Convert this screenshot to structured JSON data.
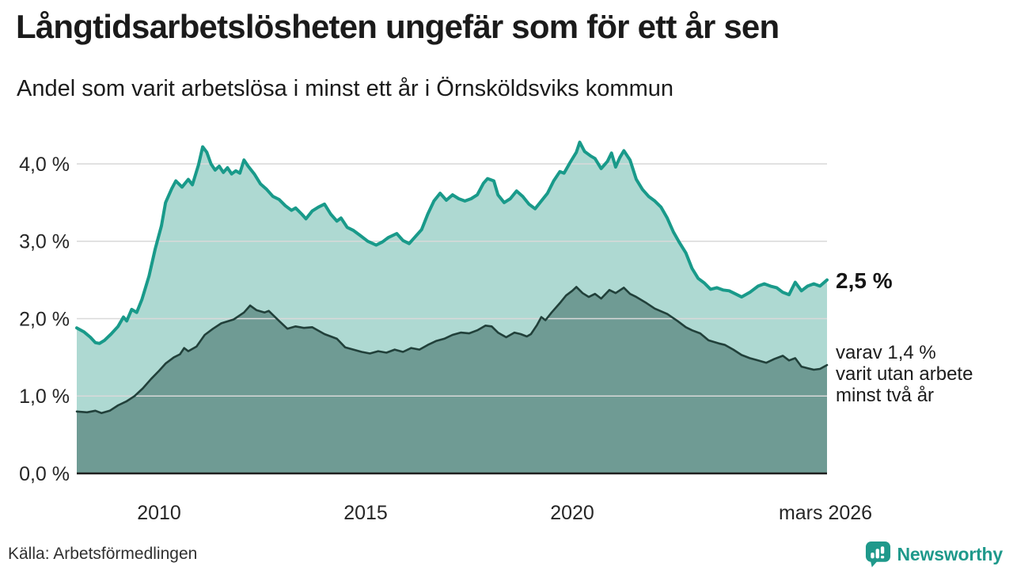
{
  "title": "Långtidsarbetslösheten ungefär som för ett år sen",
  "subtitle": "Andel som varit arbetslösa i minst ett år i Örnsköldsviks kommun",
  "source": "Källa: Arbetsförmedlingen",
  "branding": {
    "name": "Newsworthy",
    "color": "#1f998b"
  },
  "annotations": {
    "latest_total": "2,5 %",
    "secondary_line1": "varav 1,4 %",
    "secondary_line2": "varit utan arbete",
    "secondary_line3": "minst två år"
  },
  "chart_data": {
    "type": "area",
    "title": "Långtidsarbetslösheten ungefär som för ett år sen",
    "subtitle": "Andel som varit arbetslösa i minst ett år i Örnsköldsviks kommun",
    "x_unit": "decimal_year",
    "xlim": [
      2008.0,
      2026.17
    ],
    "ylim": [
      0,
      4.5
    ],
    "grid": "horizontal",
    "colors": {
      "gridline": "#d9d9d9",
      "axis_line": "#1f1f1f",
      "background": "#ffffff"
    },
    "yticks": [
      {
        "value": 4.0,
        "label": "4,0 %"
      },
      {
        "value": 3.0,
        "label": "3,0 %"
      },
      {
        "value": 2.0,
        "label": "2,0 %"
      },
      {
        "value": 1.0,
        "label": "1,0 %"
      },
      {
        "value": 0.0,
        "label": "0,0 %"
      }
    ],
    "xticks": [
      {
        "value": 2010,
        "label": "2010"
      },
      {
        "value": 2015,
        "label": "2015"
      },
      {
        "value": 2020,
        "label": "2020"
      },
      {
        "value": 2026.17,
        "label": "mars 2026"
      }
    ],
    "latest": {
      "at_least_one_year_pct": 2.5,
      "at_least_two_years_pct": 1.4
    },
    "series": [
      {
        "name": "Andel arbetslösa minst ett år",
        "color": "#199a8a",
        "fill": "#aed9d2",
        "line_width": 4,
        "x": [
          2008.0,
          2008.17,
          2008.33,
          2008.45,
          2008.55,
          2008.67,
          2008.83,
          2009.0,
          2009.13,
          2009.21,
          2009.33,
          2009.45,
          2009.58,
          2009.75,
          2009.9,
          2010.05,
          2010.15,
          2010.3,
          2010.4,
          2010.55,
          2010.7,
          2010.8,
          2010.95,
          2011.05,
          2011.15,
          2011.25,
          2011.35,
          2011.45,
          2011.55,
          2011.65,
          2011.75,
          2011.85,
          2011.95,
          2012.05,
          2012.15,
          2012.3,
          2012.45,
          2012.6,
          2012.75,
          2012.9,
          2013.05,
          2013.2,
          2013.3,
          2013.45,
          2013.55,
          2013.7,
          2013.85,
          2014.0,
          2014.15,
          2014.3,
          2014.4,
          2014.55,
          2014.7,
          2014.85,
          2015.05,
          2015.25,
          2015.4,
          2015.55,
          2015.75,
          2015.9,
          2016.05,
          2016.2,
          2016.35,
          2016.5,
          2016.65,
          2016.8,
          2016.95,
          2017.1,
          2017.25,
          2017.4,
          2017.55,
          2017.7,
          2017.85,
          2017.95,
          2018.1,
          2018.2,
          2018.35,
          2018.5,
          2018.65,
          2018.8,
          2018.95,
          2019.1,
          2019.25,
          2019.4,
          2019.55,
          2019.7,
          2019.8,
          2019.95,
          2020.1,
          2020.18,
          2020.3,
          2020.45,
          2020.55,
          2020.7,
          2020.85,
          2020.95,
          2021.05,
          2021.15,
          2021.25,
          2021.4,
          2021.55,
          2021.7,
          2021.85,
          2022.0,
          2022.15,
          2022.3,
          2022.45,
          2022.6,
          2022.75,
          2022.9,
          2023.05,
          2023.2,
          2023.35,
          2023.5,
          2023.65,
          2023.8,
          2023.95,
          2024.1,
          2024.3,
          2024.5,
          2024.65,
          2024.8,
          2024.95,
          2025.1,
          2025.25,
          2025.4,
          2025.55,
          2025.7,
          2025.85,
          2026.0,
          2026.17
        ],
        "values": [
          1.88,
          1.83,
          1.76,
          1.69,
          1.68,
          1.72,
          1.8,
          1.9,
          2.02,
          1.97,
          2.12,
          2.08,
          2.25,
          2.55,
          2.9,
          3.2,
          3.5,
          3.68,
          3.78,
          3.7,
          3.8,
          3.73,
          3.99,
          4.22,
          4.15,
          4.0,
          3.92,
          3.97,
          3.89,
          3.95,
          3.87,
          3.91,
          3.88,
          4.05,
          3.97,
          3.87,
          3.74,
          3.67,
          3.58,
          3.54,
          3.46,
          3.4,
          3.43,
          3.35,
          3.29,
          3.39,
          3.44,
          3.48,
          3.35,
          3.26,
          3.3,
          3.18,
          3.14,
          3.08,
          3.0,
          2.95,
          2.99,
          3.05,
          3.1,
          3.01,
          2.97,
          3.06,
          3.15,
          3.35,
          3.52,
          3.62,
          3.53,
          3.6,
          3.55,
          3.52,
          3.55,
          3.6,
          3.75,
          3.81,
          3.78,
          3.6,
          3.5,
          3.55,
          3.65,
          3.58,
          3.48,
          3.42,
          3.52,
          3.62,
          3.78,
          3.9,
          3.88,
          4.02,
          4.15,
          4.28,
          4.16,
          4.1,
          4.07,
          3.94,
          4.03,
          4.14,
          3.96,
          4.08,
          4.17,
          4.05,
          3.8,
          3.67,
          3.58,
          3.52,
          3.44,
          3.3,
          3.12,
          2.98,
          2.85,
          2.65,
          2.52,
          2.46,
          2.38,
          2.4,
          2.37,
          2.36,
          2.32,
          2.28,
          2.34,
          2.42,
          2.45,
          2.42,
          2.4,
          2.34,
          2.31,
          2.47,
          2.36,
          2.42,
          2.45,
          2.42,
          2.5
        ]
      },
      {
        "name": "Andel utan arbete minst två år",
        "color": "#21403a",
        "fill": "#6f9b94",
        "line_width": 2.6,
        "x": [
          2008.0,
          2008.25,
          2008.45,
          2008.6,
          2008.8,
          2009.0,
          2009.2,
          2009.4,
          2009.6,
          2009.8,
          2010.0,
          2010.15,
          2010.35,
          2010.5,
          2010.6,
          2010.7,
          2010.9,
          2011.1,
          2011.3,
          2011.5,
          2011.8,
          2012.05,
          2012.2,
          2012.35,
          2012.55,
          2012.65,
          2012.9,
          2013.1,
          2013.3,
          2013.5,
          2013.7,
          2014.0,
          2014.3,
          2014.5,
          2014.7,
          2014.9,
          2015.1,
          2015.3,
          2015.5,
          2015.7,
          2015.9,
          2016.1,
          2016.3,
          2016.5,
          2016.7,
          2016.9,
          2017.1,
          2017.3,
          2017.5,
          2017.7,
          2017.9,
          2018.05,
          2018.2,
          2018.4,
          2018.6,
          2018.75,
          2018.9,
          2019.0,
          2019.15,
          2019.25,
          2019.35,
          2019.5,
          2019.7,
          2019.85,
          2020.0,
          2020.1,
          2020.25,
          2020.4,
          2020.55,
          2020.7,
          2020.9,
          2021.05,
          2021.25,
          2021.4,
          2021.55,
          2021.8,
          2022.0,
          2022.3,
          2022.55,
          2022.75,
          2022.9,
          2023.1,
          2023.3,
          2023.55,
          2023.7,
          2023.9,
          2024.1,
          2024.3,
          2024.5,
          2024.7,
          2024.9,
          2025.1,
          2025.25,
          2025.4,
          2025.55,
          2025.7,
          2025.85,
          2026.0,
          2026.17
        ],
        "values": [
          0.8,
          0.79,
          0.81,
          0.78,
          0.81,
          0.88,
          0.93,
          1.0,
          1.1,
          1.22,
          1.33,
          1.42,
          1.5,
          1.54,
          1.62,
          1.58,
          1.64,
          1.79,
          1.87,
          1.94,
          1.99,
          2.08,
          2.17,
          2.11,
          2.08,
          2.1,
          1.97,
          1.87,
          1.9,
          1.88,
          1.89,
          1.8,
          1.74,
          1.63,
          1.6,
          1.57,
          1.55,
          1.58,
          1.56,
          1.6,
          1.57,
          1.62,
          1.6,
          1.66,
          1.71,
          1.74,
          1.79,
          1.82,
          1.81,
          1.85,
          1.91,
          1.9,
          1.82,
          1.76,
          1.82,
          1.8,
          1.77,
          1.8,
          1.92,
          2.02,
          1.98,
          2.08,
          2.2,
          2.3,
          2.36,
          2.41,
          2.33,
          2.28,
          2.32,
          2.26,
          2.37,
          2.33,
          2.4,
          2.32,
          2.28,
          2.2,
          2.13,
          2.06,
          1.97,
          1.89,
          1.85,
          1.81,
          1.72,
          1.68,
          1.66,
          1.6,
          1.53,
          1.49,
          1.46,
          1.43,
          1.48,
          1.52,
          1.46,
          1.49,
          1.38,
          1.36,
          1.34,
          1.35,
          1.4
        ]
      }
    ]
  }
}
